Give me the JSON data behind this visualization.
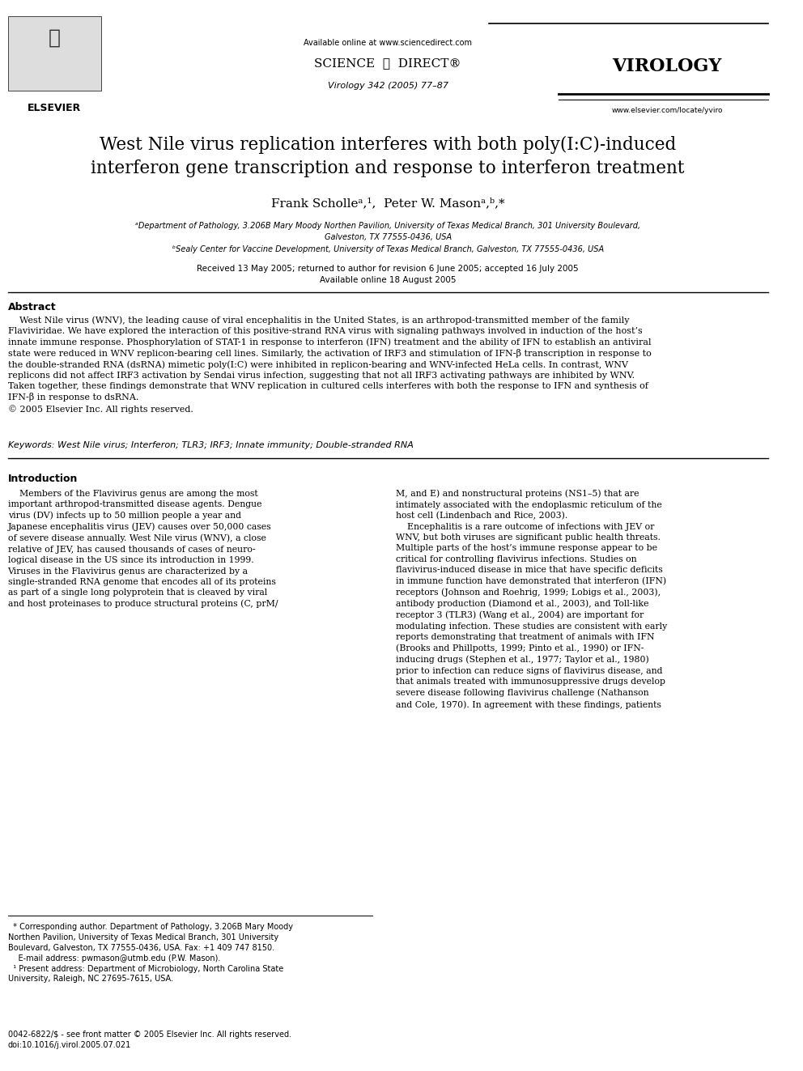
{
  "page_bg": "#ffffff",
  "header": {
    "available_online": "Available online at www.sciencedirect.com",
    "sciencedirect_text": "SCIENCE ⓓ DIRECT®",
    "journal_name": "VIROLOGY",
    "volume_info": "Virology 342 (2005) 77–87",
    "website": "www.elsevier.com/locate/yviro",
    "elsevier_text": "ELSEVIER"
  },
  "title": "West Nile virus replication interferes with both poly(I:C)-induced\ninterferon gene transcription and response to interferon treatment",
  "authors": "Frank Scholleᵃ,¹, Peter W. Masonᵃ,ᵇ,*",
  "affil_a": "ᵃDepartment of Pathology, 3.206B Mary Moody Northen Pavilion, University of Texas Medical Branch, 301 University Boulevard,\nGalveston, TX 77555-0436, USA",
  "affil_b": "ᵇSealy Center for Vaccine Development, University of Texas Medical Branch, Galveston, TX 77555-0436, USA",
  "dates": "Received 13 May 2005; returned to author for revision 6 June 2005; accepted 16 July 2005\nAvailable online 18 August 2005",
  "abstract_heading": "Abstract",
  "abstract_text": "West Nile virus (WNV), the leading cause of viral encephalitis in the United States, is an arthropod-transmitted member of the family Flaviviridae. We have explored the interaction of this positive-strand RNA virus with signaling pathways involved in induction of the host’s innate immune response. Phosphorylation of STAT-1 in response to interferon (IFN) treatment and the ability of IFN to establish an antiviral state were reduced in WNV replicon-bearing cell lines. Similarly, the activation of IRF3 and stimulation of IFN-β transcription in response to the double-stranded RNA (dsRNA) mimetic poly(I:C) were inhibited in replicon-bearing and WNV-infected HeLa cells. In contrast, WNV replicons did not affect IRF3 activation by Sendai virus infection, suggesting that not all IRF3 activating pathways are inhibited by WNV. Taken together, these findings demonstrate that WNV replication in cultured cells interferes with both the response to IFN and synthesis of IFN-β in response to dsRNA.\n© 2005 Elsevier Inc. All rights reserved.",
  "keywords": "Keywords: West Nile virus; Interferon; TLR3; IRF3; Innate immunity; Double-stranded RNA",
  "intro_heading": "Introduction",
  "intro_left": "Members of the Flavivirus genus are among the most important arthropod-transmitted disease agents. Dengue virus (DV) infects up to 50 million people a year and Japanese encephalitis virus (JEV) causes over 50,000 cases of severe disease annually. West Nile virus (WNV), a close relative of JEV, has caused thousands of cases of neurological disease in the US since its introduction in 1999. Viruses in the Flavivirus genus are characterized by a single-stranded RNA genome that encodes all of its proteins as part of a single long polyprotein that is cleaved by viral and host proteinases to produce structural proteins (C, prM/",
  "intro_right": "M, and E) and nonstructural proteins (NS1–5) that are intimately associated with the endoplasmic reticulum of the host cell (Lindenbach and Rice, 2003).\n    Encephalitis is a rare outcome of infections with JEV or WNV, but both viruses are significant public health threats. Multiple parts of the host’s immune response appear to be critical for controlling flavivirus infections. Studies on flavivirus-induced disease in mice that have specific deficits in immune function have demonstrated that interferon (IFN) receptors (Johnson and Roehrig, 1999; Lobigs et al., 2003), antibody production (Diamond et al., 2003), and Toll-like receptor 3 (TLR3) (Wang et al., 2004) are important for modulating infection. These studies are consistent with early reports demonstrating that treatment of animals with IFN (Brooks and Phillpotts, 1999; Pinto et al., 1990) or IFN-inducing drugs (Stephen et al., 1977; Taylor et al., 1980) prior to infection can reduce signs of flavivirus disease, and that animals treated with immunosuppressive drugs develop severe disease following flavivirus challenge (Nathanson and Cole, 1970). In agreement with these findings, patients",
  "footnote_star": "* Corresponding author. Department of Pathology, 3.206B Mary Moody Northen Pavilion, University of Texas Medical Branch, 301 University Boulevard, Galveston, TX 77555-0436, USA. Fax: +1 409 747 8150.\n    E-mail address: pwmason@utmb.edu (P.W. Mason).\n¹ Present address: Department of Microbiology, North Carolina State University, Raleigh, NC 27695-7615, USA.",
  "bottom_left": "0042-6822/$ - see front matter © 2005 Elsevier Inc. All rights reserved.\ndoi:10.1016/j.virol.2005.07.021"
}
